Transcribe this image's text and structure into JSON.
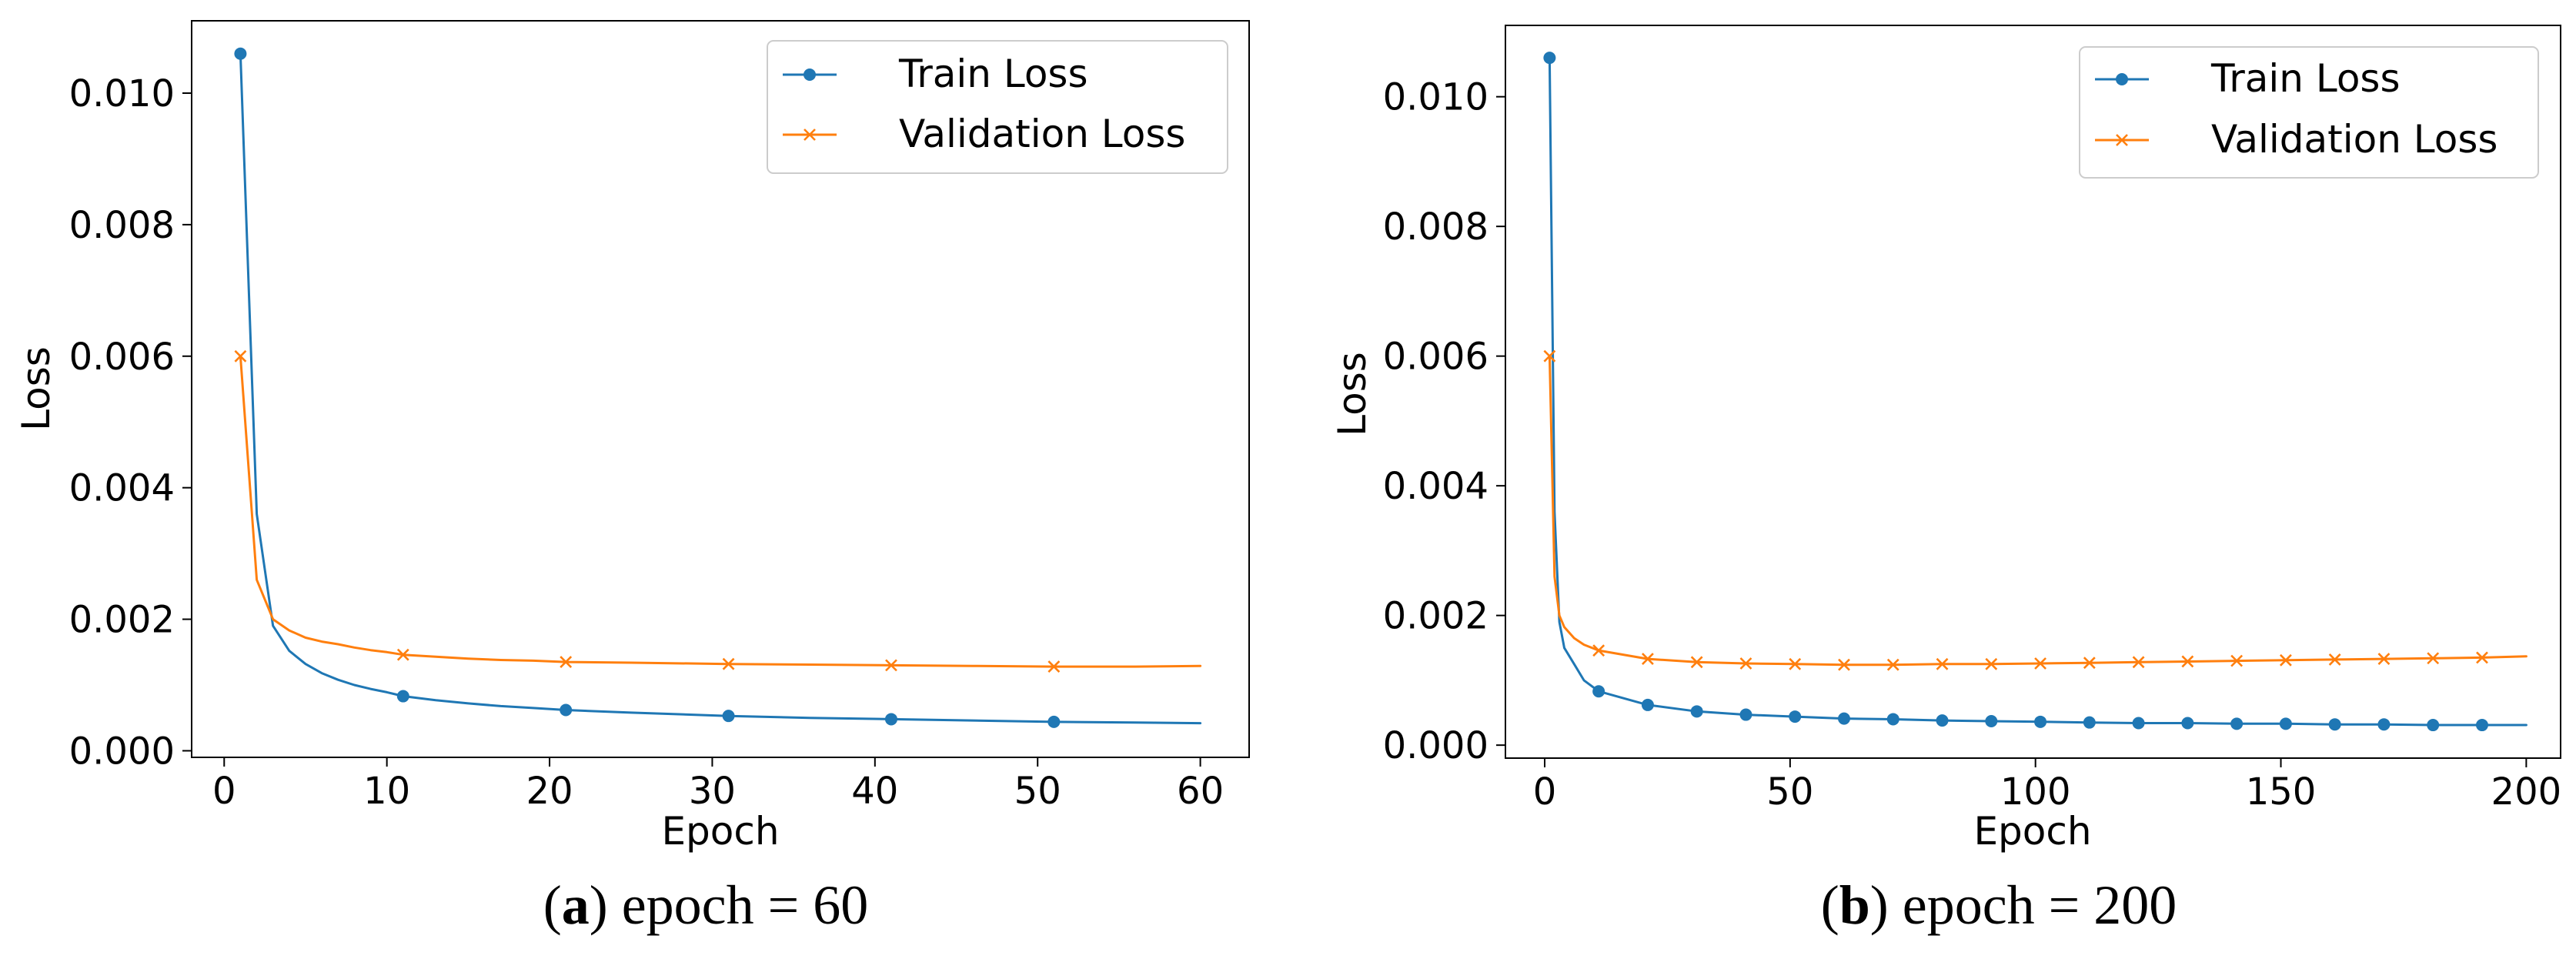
{
  "colors": {
    "train": "#1f77b4",
    "validation": "#ff7f0e",
    "axis": "#000000",
    "background": "#ffffff"
  },
  "chart_data": [
    {
      "type": "line",
      "title": "",
      "xlabel": "Epoch",
      "ylabel": "Loss",
      "xlim": [
        -2,
        63
      ],
      "ylim": [
        -0.0001,
        0.0111
      ],
      "xticks": [
        0,
        10,
        20,
        30,
        40,
        50,
        60
      ],
      "xtick_labels": [
        "0",
        "10",
        "20",
        "30",
        "40",
        "50",
        "60"
      ],
      "yticks": [
        0,
        0.002,
        0.004,
        0.006,
        0.008,
        0.01
      ],
      "ytick_labels": [
        "0.000",
        "0.002",
        "0.004",
        "0.006",
        "0.008",
        "0.010"
      ],
      "legend": {
        "position": "top-right",
        "entries": [
          "Train Loss",
          "Validation Loss"
        ]
      },
      "caption": {
        "label": "a",
        "text": "epoch = 60"
      },
      "series": [
        {
          "name": "Train Loss",
          "marker": "circle",
          "marker_every": 10,
          "x": [
            1,
            2,
            3,
            4,
            5,
            6,
            7,
            8,
            9,
            10,
            11,
            13,
            15,
            17,
            19,
            21,
            25,
            31,
            36,
            41,
            46,
            51,
            56,
            60
          ],
          "y": [
            0.0106,
            0.0036,
            0.0019,
            0.00152,
            0.00132,
            0.00118,
            0.00108,
            0.001,
            0.00094,
            0.00089,
            0.00083,
            0.00077,
            0.00072,
            0.00068,
            0.00065,
            0.00062,
            0.00058,
            0.00053,
            0.0005,
            0.00048,
            0.00046,
            0.00044,
            0.00043,
            0.00042
          ]
        },
        {
          "name": "Validation Loss",
          "marker": "x",
          "marker_every": 10,
          "x": [
            1,
            2,
            3,
            4,
            5,
            6,
            7,
            8,
            9,
            10,
            11,
            13,
            15,
            17,
            19,
            21,
            25,
            31,
            36,
            41,
            46,
            51,
            56,
            60
          ],
          "y": [
            0.006,
            0.0026,
            0.002,
            0.00183,
            0.00172,
            0.00166,
            0.00162,
            0.00157,
            0.00153,
            0.0015,
            0.00146,
            0.00143,
            0.0014,
            0.00138,
            0.00137,
            0.00135,
            0.00134,
            0.00132,
            0.00131,
            0.0013,
            0.00129,
            0.00128,
            0.00128,
            0.00129
          ]
        }
      ]
    },
    {
      "type": "line",
      "title": "",
      "xlabel": "Epoch",
      "ylabel": "Loss",
      "xlim": [
        -8,
        207
      ],
      "ylim": [
        -0.0002,
        0.0111
      ],
      "xticks": [
        0,
        50,
        100,
        150,
        200
      ],
      "xtick_labels": [
        "0",
        "50",
        "100",
        "150",
        "200"
      ],
      "yticks": [
        0,
        0.002,
        0.004,
        0.006,
        0.008,
        0.01
      ],
      "ytick_labels": [
        "0.000",
        "0.002",
        "0.004",
        "0.006",
        "0.008",
        "0.010"
      ],
      "legend": {
        "position": "top-right",
        "entries": [
          "Train Loss",
          "Validation Loss"
        ]
      },
      "caption": {
        "label": "b",
        "text": "epoch = 200"
      },
      "series": [
        {
          "name": "Train Loss",
          "marker": "circle",
          "marker_every": 10,
          "x": [
            1,
            2,
            3,
            4,
            6,
            8,
            11,
            21,
            31,
            41,
            51,
            61,
            71,
            81,
            91,
            101,
            111,
            121,
            131,
            141,
            151,
            161,
            171,
            181,
            191,
            200
          ],
          "y": [
            0.0106,
            0.0036,
            0.0019,
            0.0015,
            0.00125,
            0.001,
            0.00083,
            0.00062,
            0.00052,
            0.00047,
            0.00044,
            0.00041,
            0.0004,
            0.00038,
            0.00037,
            0.00036,
            0.00035,
            0.00034,
            0.00034,
            0.00033,
            0.00033,
            0.00032,
            0.00032,
            0.00031,
            0.00031,
            0.00031
          ]
        },
        {
          "name": "Validation Loss",
          "marker": "x",
          "marker_every": 10,
          "x": [
            1,
            2,
            3,
            4,
            6,
            8,
            11,
            21,
            31,
            41,
            51,
            61,
            71,
            81,
            91,
            101,
            111,
            121,
            131,
            141,
            151,
            161,
            171,
            181,
            191,
            200
          ],
          "y": [
            0.006,
            0.0026,
            0.002,
            0.00182,
            0.00165,
            0.00155,
            0.00146,
            0.00133,
            0.00128,
            0.00126,
            0.00125,
            0.00124,
            0.00124,
            0.00125,
            0.00125,
            0.00126,
            0.00127,
            0.00128,
            0.00129,
            0.0013,
            0.00131,
            0.00132,
            0.00133,
            0.00134,
            0.00135,
            0.00137
          ]
        }
      ]
    }
  ]
}
